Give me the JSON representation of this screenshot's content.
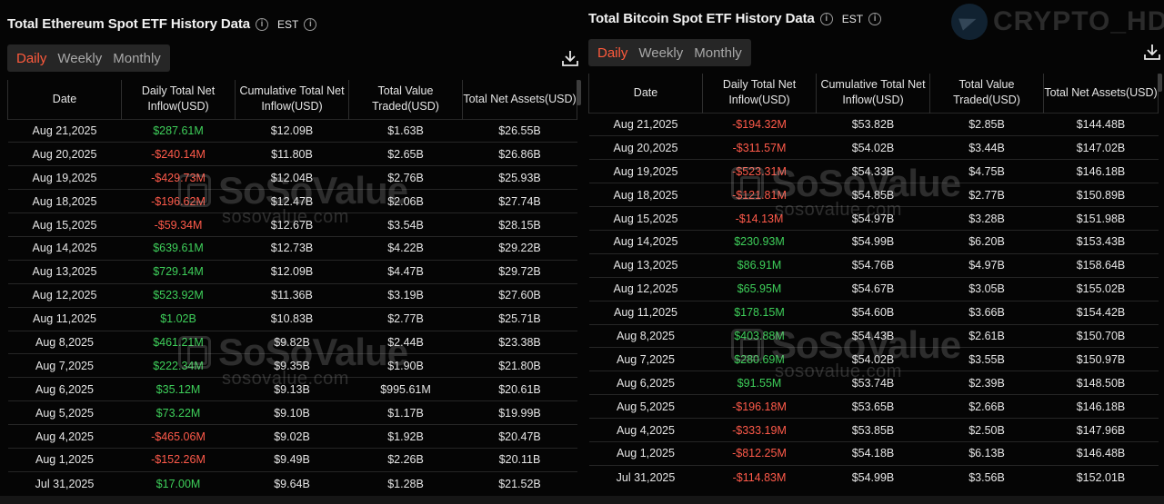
{
  "brand": "CRYPTO_HD",
  "watermark": {
    "name": "SoSoValue",
    "url": "sosovalue.com"
  },
  "eth": {
    "title": "Total Ethereum Spot ETF History Data",
    "timezone": "EST",
    "tabs": [
      "Daily",
      "Weekly",
      "Monthly"
    ],
    "active_tab": "Daily",
    "columns": [
      "Date",
      "Daily Total Net Inflow(USD)",
      "Cumulative Total Net Inflow(USD)",
      "Total Value Traded(USD)",
      "Total Net Assets(USD)"
    ],
    "rows": [
      {
        "date": "Aug 21,2025",
        "daily": "$287.61M",
        "cum": "$12.09B",
        "traded": "$1.63B",
        "assets": "$26.55B"
      },
      {
        "date": "Aug 20,2025",
        "daily": "-$240.14M",
        "cum": "$11.80B",
        "traded": "$2.65B",
        "assets": "$26.86B"
      },
      {
        "date": "Aug 19,2025",
        "daily": "-$429.73M",
        "cum": "$12.04B",
        "traded": "$2.76B",
        "assets": "$25.93B"
      },
      {
        "date": "Aug 18,2025",
        "daily": "-$196.62M",
        "cum": "$12.47B",
        "traded": "$2.06B",
        "assets": "$27.74B"
      },
      {
        "date": "Aug 15,2025",
        "daily": "-$59.34M",
        "cum": "$12.67B",
        "traded": "$3.54B",
        "assets": "$28.15B"
      },
      {
        "date": "Aug 14,2025",
        "daily": "$639.61M",
        "cum": "$12.73B",
        "traded": "$4.22B",
        "assets": "$29.22B"
      },
      {
        "date": "Aug 13,2025",
        "daily": "$729.14M",
        "cum": "$12.09B",
        "traded": "$4.47B",
        "assets": "$29.72B"
      },
      {
        "date": "Aug 12,2025",
        "daily": "$523.92M",
        "cum": "$11.36B",
        "traded": "$3.19B",
        "assets": "$27.60B"
      },
      {
        "date": "Aug 11,2025",
        "daily": "$1.02B",
        "cum": "$10.83B",
        "traded": "$2.77B",
        "assets": "$25.71B"
      },
      {
        "date": "Aug 8,2025",
        "daily": "$461.21M",
        "cum": "$9.82B",
        "traded": "$2.44B",
        "assets": "$23.38B"
      },
      {
        "date": "Aug 7,2025",
        "daily": "$222.34M",
        "cum": "$9.35B",
        "traded": "$1.90B",
        "assets": "$21.80B"
      },
      {
        "date": "Aug 6,2025",
        "daily": "$35.12M",
        "cum": "$9.13B",
        "traded": "$995.61M",
        "assets": "$20.61B"
      },
      {
        "date": "Aug 5,2025",
        "daily": "$73.22M",
        "cum": "$9.10B",
        "traded": "$1.17B",
        "assets": "$19.99B"
      },
      {
        "date": "Aug 4,2025",
        "daily": "-$465.06M",
        "cum": "$9.02B",
        "traded": "$1.92B",
        "assets": "$20.47B"
      },
      {
        "date": "Aug 1,2025",
        "daily": "-$152.26M",
        "cum": "$9.49B",
        "traded": "$2.26B",
        "assets": "$20.11B"
      },
      {
        "date": "Jul 31,2025",
        "daily": "$17.00M",
        "cum": "$9.64B",
        "traded": "$1.28B",
        "assets": "$21.52B"
      }
    ]
  },
  "btc": {
    "title": "Total Bitcoin Spot ETF History Data",
    "timezone": "EST",
    "tabs": [
      "Daily",
      "Weekly",
      "Monthly"
    ],
    "active_tab": "Daily",
    "columns": [
      "Date",
      "Daily Total Net Inflow(USD)",
      "Cumulative Total Net Inflow(USD)",
      "Total Value Traded(USD)",
      "Total Net Assets(USD)"
    ],
    "rows": [
      {
        "date": "Aug 21,2025",
        "daily": "-$194.32M",
        "cum": "$53.82B",
        "traded": "$2.85B",
        "assets": "$144.48B"
      },
      {
        "date": "Aug 20,2025",
        "daily": "-$311.57M",
        "cum": "$54.02B",
        "traded": "$3.44B",
        "assets": "$147.02B"
      },
      {
        "date": "Aug 19,2025",
        "daily": "-$523.31M",
        "cum": "$54.33B",
        "traded": "$4.75B",
        "assets": "$146.18B"
      },
      {
        "date": "Aug 18,2025",
        "daily": "-$121.81M",
        "cum": "$54.85B",
        "traded": "$2.77B",
        "assets": "$150.89B"
      },
      {
        "date": "Aug 15,2025",
        "daily": "-$14.13M",
        "cum": "$54.97B",
        "traded": "$3.28B",
        "assets": "$151.98B"
      },
      {
        "date": "Aug 14,2025",
        "daily": "$230.93M",
        "cum": "$54.99B",
        "traded": "$6.20B",
        "assets": "$153.43B"
      },
      {
        "date": "Aug 13,2025",
        "daily": "$86.91M",
        "cum": "$54.76B",
        "traded": "$4.97B",
        "assets": "$158.64B"
      },
      {
        "date": "Aug 12,2025",
        "daily": "$65.95M",
        "cum": "$54.67B",
        "traded": "$3.05B",
        "assets": "$155.02B"
      },
      {
        "date": "Aug 11,2025",
        "daily": "$178.15M",
        "cum": "$54.60B",
        "traded": "$3.66B",
        "assets": "$154.42B"
      },
      {
        "date": "Aug 8,2025",
        "daily": "$403.88M",
        "cum": "$54.43B",
        "traded": "$2.61B",
        "assets": "$150.70B"
      },
      {
        "date": "Aug 7,2025",
        "daily": "$280.69M",
        "cum": "$54.02B",
        "traded": "$3.55B",
        "assets": "$150.97B"
      },
      {
        "date": "Aug 6,2025",
        "daily": "$91.55M",
        "cum": "$53.74B",
        "traded": "$2.39B",
        "assets": "$148.50B"
      },
      {
        "date": "Aug 5,2025",
        "daily": "-$196.18M",
        "cum": "$53.65B",
        "traded": "$2.66B",
        "assets": "$146.18B"
      },
      {
        "date": "Aug 4,2025",
        "daily": "-$333.19M",
        "cum": "$53.85B",
        "traded": "$2.50B",
        "assets": "$147.96B"
      },
      {
        "date": "Aug 1,2025",
        "daily": "-$812.25M",
        "cum": "$54.18B",
        "traded": "$6.13B",
        "assets": "$146.48B"
      },
      {
        "date": "Jul 31,2025",
        "daily": "-$114.83M",
        "cum": "$54.99B",
        "traded": "$3.56B",
        "assets": "$152.01B"
      }
    ]
  },
  "colors": {
    "positive": "#3ecf5a",
    "negative": "#ff5a4a",
    "active_tab": "#ff5a3c"
  },
  "icons": [
    "info-icon",
    "download-icon"
  ]
}
